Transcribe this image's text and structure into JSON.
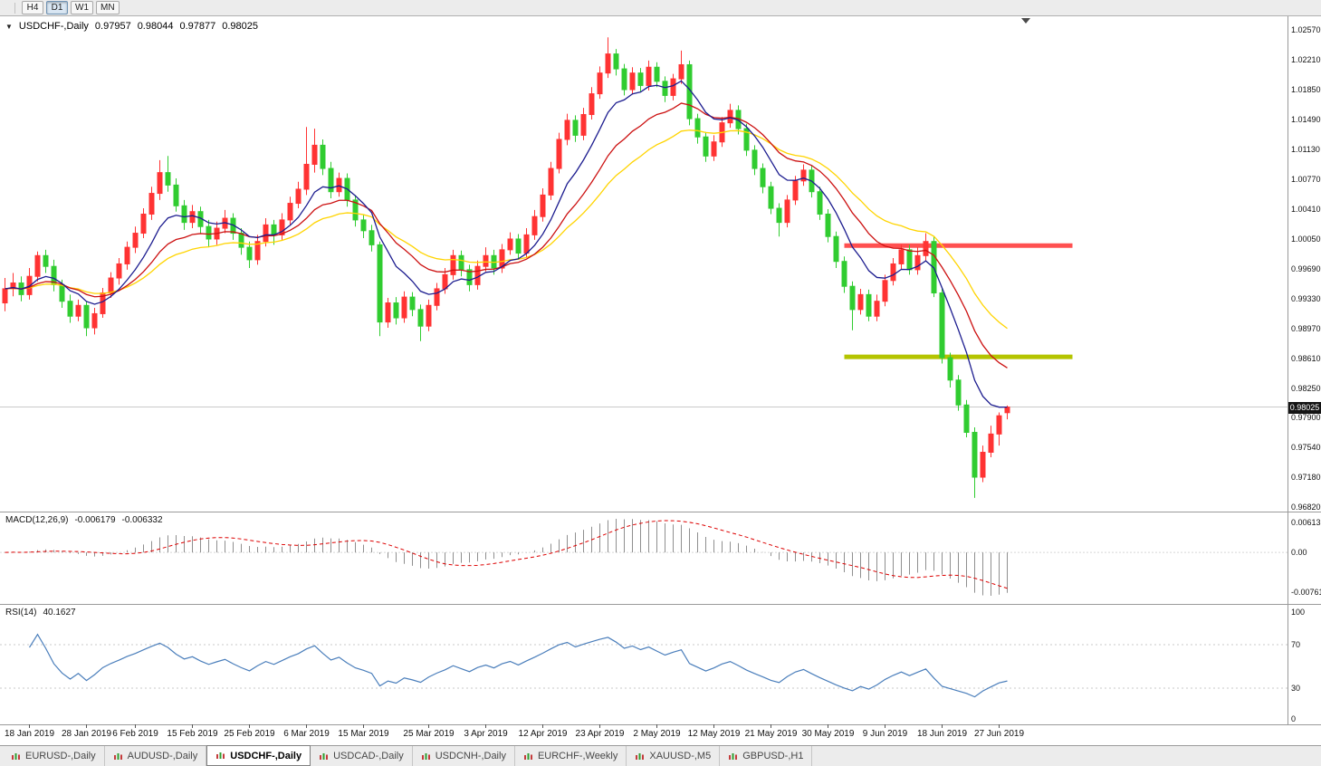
{
  "toolbar": {
    "timeframe_buttons": [
      "H4",
      "D1",
      "W1",
      "MN"
    ],
    "active_timeframe": "D1"
  },
  "chart_header": {
    "symbol": "USDCHF-,Daily",
    "open": "0.97957",
    "high": "0.98044",
    "low": "0.97877",
    "close": "0.98025"
  },
  "price_badge": "0.98025",
  "tabs": {
    "items": [
      "EURUSD-,Daily",
      "AUDUSD-,Daily",
      "USDCHF-,Daily",
      "USDCAD-,Daily",
      "USDCNH-,Daily",
      "EURCHF-,Weekly",
      "XAUUSD-,M5",
      "GBPUSD-,H1"
    ],
    "active": "USDCHF-,Daily"
  },
  "chart_data": {
    "type": "candlestick",
    "symbol": "USDCHF",
    "timeframe": "Daily",
    "last_price": 0.98025,
    "colors": {
      "up": "#ff3333",
      "down": "#30cc30",
      "macd_hist": "#8f8f8f",
      "macd_signal": "#dd0000",
      "rsi": "#4a7ebb"
    },
    "price_axis": {
      "top": 1.0257,
      "bottom": 0.9682,
      "labels": [
        "1.02570",
        "1.02210",
        "1.01850",
        "1.01490",
        "1.01130",
        "1.00770",
        "1.00410",
        "1.00050",
        "0.99690",
        "0.99330",
        "0.98970",
        "0.98610",
        "0.98250",
        "0.97900",
        "0.97540",
        "0.97180",
        "0.96820"
      ]
    },
    "date_axis": {
      "labels": [
        "18 Jan 2019",
        "28 Jan 2019",
        "6 Feb 2019",
        "15 Feb 2019",
        "25 Feb 2019",
        "6 Mar 2019",
        "15 Mar 2019",
        "25 Mar 2019",
        "3 Apr 2019",
        "12 Apr 2019",
        "23 Apr 2019",
        "2 May 2019",
        "12 May 2019",
        "21 May 2019",
        "30 May 2019",
        "9 Jun 2019",
        "18 Jun 2019",
        "27 Jun 2019"
      ],
      "indices": [
        3,
        10,
        16,
        23,
        30,
        37,
        44,
        52,
        59,
        66,
        73,
        80,
        87,
        94,
        101,
        108,
        115,
        122
      ]
    },
    "moving_averages": [
      {
        "name": "fast",
        "type": "ema",
        "period": 8,
        "color": "#1c1c8f"
      },
      {
        "name": "mid",
        "type": "ema",
        "period": 16,
        "color": "#cc1111"
      },
      {
        "name": "slow",
        "type": "ema",
        "period": 26,
        "color": "#ffd400"
      }
    ],
    "levels": [
      {
        "name": "resistance",
        "price": 0.9997,
        "color": "#ff5050",
        "from_index": 103,
        "to_index": 131,
        "thickness": 5
      },
      {
        "name": "support",
        "price": 0.9863,
        "color": "#b4c400",
        "from_index": 103,
        "to_index": 131,
        "thickness": 5
      }
    ],
    "macd": {
      "label": "MACD(12,26,9)",
      "value_main": "-0.006179",
      "value_signal": "-0.006332",
      "fast": 12,
      "slow": 26,
      "signal": 9,
      "axis_labels": [
        "0.00613",
        "0.00",
        "-0.00761"
      ]
    },
    "rsi": {
      "label": "RSI(14)",
      "value": "40.1627",
      "period": 14,
      "axis_labels": [
        "100",
        "70",
        "30",
        "0"
      ],
      "guide_levels": [
        70,
        30
      ]
    },
    "candles": [
      [
        0.9928,
        0.9958,
        0.9918,
        0.9945
      ],
      [
        0.9945,
        0.9964,
        0.9936,
        0.9952
      ],
      [
        0.9952,
        0.996,
        0.993,
        0.9938
      ],
      [
        0.9938,
        0.997,
        0.9932,
        0.996
      ],
      [
        0.996,
        0.999,
        0.9954,
        0.9985
      ],
      [
        0.9985,
        0.9992,
        0.9964,
        0.9972
      ],
      [
        0.9972,
        0.998,
        0.9942,
        0.995
      ],
      [
        0.995,
        0.9956,
        0.9922,
        0.993
      ],
      [
        0.993,
        0.9938,
        0.9904,
        0.9912
      ],
      [
        0.9912,
        0.9932,
        0.9906,
        0.9925
      ],
      [
        0.9925,
        0.993,
        0.9888,
        0.9898
      ],
      [
        0.9898,
        0.9922,
        0.989,
        0.9915
      ],
      [
        0.9915,
        0.9946,
        0.991,
        0.994
      ],
      [
        0.994,
        0.9965,
        0.9934,
        0.9958
      ],
      [
        0.9958,
        0.9982,
        0.995,
        0.9975
      ],
      [
        0.9975,
        1.0002,
        0.9968,
        0.9995
      ],
      [
        0.9995,
        1.002,
        0.9988,
        1.0012
      ],
      [
        1.0012,
        1.0042,
        1.0006,
        1.0035
      ],
      [
        1.0035,
        1.0068,
        1.0028,
        1.006
      ],
      [
        1.006,
        1.01,
        1.0052,
        1.0085
      ],
      [
        1.0085,
        1.0105,
        1.0062,
        1.007
      ],
      [
        1.007,
        1.0078,
        1.0038,
        1.0045
      ],
      [
        1.0045,
        1.0052,
        1.0016,
        1.0025
      ],
      [
        1.0025,
        1.0046,
        1.0018,
        1.0038
      ],
      [
        1.0038,
        1.0044,
        1.0012,
        1.002
      ],
      [
        1.002,
        1.0028,
        0.9995,
        1.0005
      ],
      [
        1.0005,
        1.0026,
        0.9998,
        1.0018
      ],
      [
        1.0018,
        1.004,
        1.0012,
        1.003
      ],
      [
        1.003,
        1.0036,
        1.0004,
        1.0012
      ],
      [
        1.0012,
        1.0018,
        0.9986,
        0.9995
      ],
      [
        0.9995,
        1.0002,
        0.997,
        0.998
      ],
      [
        0.998,
        1.001,
        0.9974,
        1.0002
      ],
      [
        1.0002,
        1.003,
        0.9996,
        1.0022
      ],
      [
        1.0022,
        1.0028,
        0.9998,
        1.001
      ],
      [
        1.001,
        1.0036,
        1.0004,
        1.0028
      ],
      [
        1.0028,
        1.0056,
        1.0022,
        1.0048
      ],
      [
        1.0048,
        1.0074,
        1.0042,
        1.0065
      ],
      [
        1.0065,
        1.014,
        1.0058,
        1.0095
      ],
      [
        1.0095,
        1.0138,
        1.0085,
        1.0118
      ],
      [
        1.0118,
        1.0125,
        1.0082,
        1.009
      ],
      [
        1.009,
        1.0098,
        1.0054,
        1.0062
      ],
      [
        1.0062,
        1.0085,
        1.0056,
        1.0078
      ],
      [
        1.0078,
        1.0084,
        1.0044,
        1.0052
      ],
      [
        1.0052,
        1.0058,
        1.002,
        1.0028
      ],
      [
        1.0028,
        1.0034,
        1.0006,
        1.0015
      ],
      [
        1.0015,
        1.0022,
        0.999,
        0.9998
      ],
      [
        0.9998,
        1.0002,
        0.9888,
        0.9905
      ],
      [
        0.9905,
        0.9934,
        0.9898,
        0.9928
      ],
      [
        0.9928,
        0.9935,
        0.9902,
        0.991
      ],
      [
        0.991,
        0.9942,
        0.9904,
        0.9935
      ],
      [
        0.9935,
        0.9941,
        0.9912,
        0.992
      ],
      [
        0.992,
        0.9926,
        0.9882,
        0.99
      ],
      [
        0.99,
        0.9932,
        0.9894,
        0.9925
      ],
      [
        0.9925,
        0.9952,
        0.9919,
        0.9945
      ],
      [
        0.9945,
        0.997,
        0.9939,
        0.9962
      ],
      [
        0.9962,
        0.9992,
        0.9956,
        0.9985
      ],
      [
        0.9985,
        0.9991,
        0.996,
        0.9968
      ],
      [
        0.9968,
        0.9974,
        0.9942,
        0.995
      ],
      [
        0.995,
        0.9979,
        0.9944,
        0.9972
      ],
      [
        0.9972,
        0.9995,
        0.9966,
        0.9985
      ],
      [
        0.9985,
        0.9992,
        0.9962,
        0.997
      ],
      [
        0.997,
        0.9999,
        0.9964,
        0.9992
      ],
      [
        0.9992,
        1.0013,
        0.9986,
        1.0005
      ],
      [
        1.0005,
        1.0011,
        0.998,
        0.9988
      ],
      [
        0.9988,
        1.0018,
        0.9982,
        1.001
      ],
      [
        1.001,
        1.004,
        1.0004,
        1.0032
      ],
      [
        1.0032,
        1.0066,
        1.0026,
        1.0058
      ],
      [
        1.0058,
        1.0098,
        1.0052,
        1.009
      ],
      [
        1.009,
        1.0133,
        1.0084,
        1.0125
      ],
      [
        1.0125,
        1.0156,
        1.0118,
        1.0148
      ],
      [
        1.0148,
        1.0154,
        1.0122,
        1.013
      ],
      [
        1.013,
        1.0163,
        1.0124,
        1.0155
      ],
      [
        1.0155,
        1.0188,
        1.0149,
        1.018
      ],
      [
        1.018,
        1.0213,
        1.0174,
        1.0205
      ],
      [
        1.0205,
        1.0248,
        1.0199,
        1.0228
      ],
      [
        1.0228,
        1.0234,
        1.0202,
        1.021
      ],
      [
        1.021,
        1.0216,
        1.0178,
        1.0185
      ],
      [
        1.0185,
        1.0212,
        1.0179,
        1.0205
      ],
      [
        1.0205,
        1.0211,
        1.0182,
        1.019
      ],
      [
        1.019,
        1.022,
        1.0184,
        1.0212
      ],
      [
        1.0212,
        1.0218,
        1.0188,
        1.0195
      ],
      [
        1.0195,
        1.0201,
        1.017,
        1.0178
      ],
      [
        1.0178,
        1.0204,
        1.0172,
        1.0198
      ],
      [
        1.0198,
        1.0232,
        1.0192,
        1.0215
      ],
      [
        1.0215,
        1.022,
        1.0142,
        1.015
      ],
      [
        1.015,
        1.0156,
        1.012,
        1.0128
      ],
      [
        1.0128,
        1.0134,
        1.0098,
        1.0105
      ],
      [
        1.0105,
        1.013,
        1.0099,
        1.0122
      ],
      [
        1.0122,
        1.0152,
        1.0116,
        1.0145
      ],
      [
        1.0145,
        1.0168,
        1.0139,
        1.016
      ],
      [
        1.016,
        1.0166,
        1.0131,
        1.0138
      ],
      [
        1.0138,
        1.0144,
        1.0105,
        1.0112
      ],
      [
        1.0112,
        1.0118,
        1.0082,
        1.009
      ],
      [
        1.009,
        1.0096,
        1.006,
        1.0068
      ],
      [
        1.0068,
        1.0074,
        1.0035,
        1.0042
      ],
      [
        1.0042,
        1.0048,
        1.0008,
        1.0025
      ],
      [
        1.0025,
        1.0058,
        1.0019,
        1.0052
      ],
      [
        1.0052,
        1.0081,
        1.0046,
        1.0075
      ],
      [
        1.0075,
        1.0095,
        1.0069,
        1.0088
      ],
      [
        1.0088,
        1.0094,
        1.0055,
        1.0062
      ],
      [
        1.0062,
        1.0068,
        1.0028,
        1.0035
      ],
      [
        1.0035,
        1.0041,
        1.0001,
        1.0008
      ],
      [
        1.0008,
        1.0014,
        0.997,
        0.9978
      ],
      [
        0.9978,
        0.9984,
        0.994,
        0.9948
      ],
      [
        0.9948,
        0.9954,
        0.9895,
        0.992
      ],
      [
        0.992,
        0.9945,
        0.9914,
        0.9938
      ],
      [
        0.9938,
        0.9944,
        0.9906,
        0.9912
      ],
      [
        0.9912,
        0.9938,
        0.9906,
        0.993
      ],
      [
        0.993,
        0.9962,
        0.9924,
        0.9955
      ],
      [
        0.9955,
        0.9982,
        0.9949,
        0.9975
      ],
      [
        0.9975,
        0.9998,
        0.9969,
        0.9992
      ],
      [
        0.9992,
        0.9998,
        0.9962,
        0.9968
      ],
      [
        0.9968,
        0.9995,
        0.9962,
        0.9985
      ],
      [
        0.9985,
        1.0012,
        0.9979,
        1.0002
      ],
      [
        1.0002,
        1.0008,
        0.9935,
        0.994
      ],
      [
        0.994,
        0.9946,
        0.9855,
        0.9862
      ],
      [
        0.9862,
        0.9868,
        0.9826,
        0.9835
      ],
      [
        0.9835,
        0.9841,
        0.9798,
        0.9805
      ],
      [
        0.9805,
        0.9811,
        0.9766,
        0.9772
      ],
      [
        0.9772,
        0.9778,
        0.9693,
        0.9718
      ],
      [
        0.9718,
        0.9756,
        0.9712,
        0.9748
      ],
      [
        0.9748,
        0.978,
        0.9742,
        0.977
      ],
      [
        0.977,
        0.9796,
        0.9756,
        0.9792
      ],
      [
        0.97957,
        0.98044,
        0.97877,
        0.98025
      ]
    ]
  }
}
